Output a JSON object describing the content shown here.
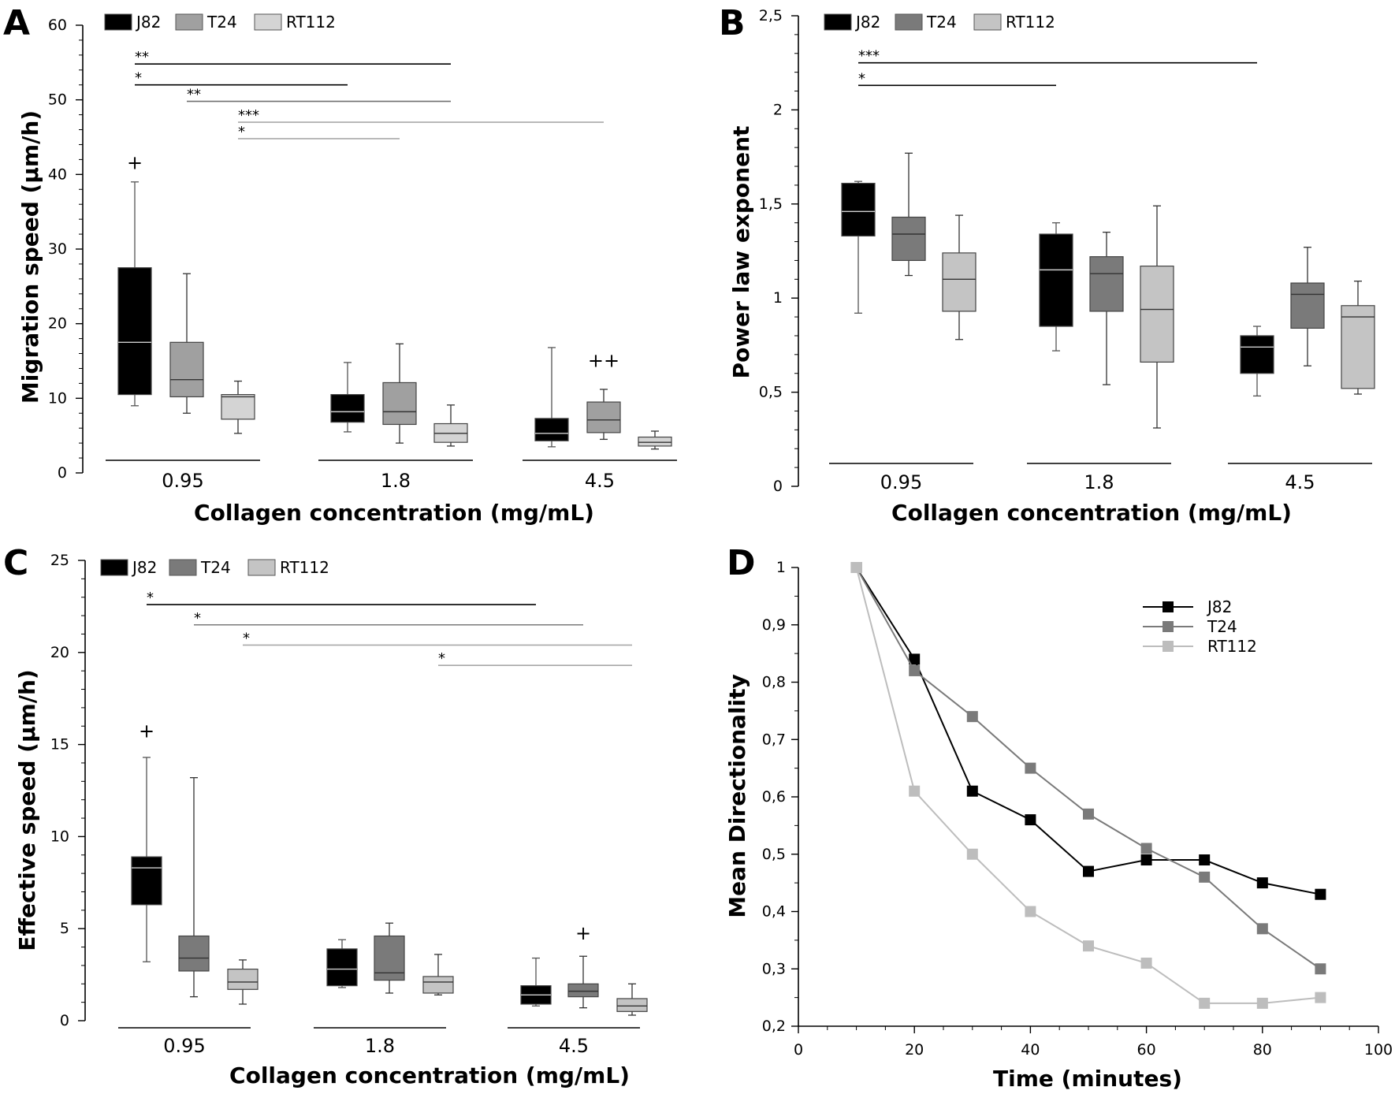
{
  "figure": {
    "colors": {
      "J82": "#000000",
      "T24": "#909090",
      "RT112": "#d0d0d0",
      "T24_dark": "#7a7a7a",
      "RT112_light": "#c4c4c4"
    }
  },
  "chart_data": [
    {
      "id": "A",
      "type": "box",
      "panel_label": "A",
      "title": "",
      "xlabel": "Collagen concentration (mg/mL)",
      "ylabel": "Migration speed (µm/h)",
      "ylim": [
        0,
        60
      ],
      "yticks": [
        0,
        10,
        20,
        30,
        40,
        50,
        60
      ],
      "ytick_labels": [
        "0",
        "10",
        "20",
        "30",
        "40",
        "50",
        "60"
      ],
      "categories": [
        "0.95",
        "1.8",
        "4.5"
      ],
      "legend": [
        "J82",
        "T24",
        "RT112"
      ],
      "series": [
        {
          "name": "J82",
          "color": "#000000",
          "boxes": [
            {
              "min": 9,
              "q1": 10.5,
              "median": 17.5,
              "q3": 27.5,
              "max": 39
            },
            {
              "min": 5.5,
              "q1": 6.8,
              "median": 8.2,
              "q3": 10.5,
              "max": 14.8
            },
            {
              "min": 3.5,
              "q1": 4.3,
              "median": 5.3,
              "q3": 7.3,
              "max": 16.8
            }
          ]
        },
        {
          "name": "T24",
          "color": "#a0a0a0",
          "boxes": [
            {
              "min": 8,
              "q1": 10.2,
              "median": 12.5,
              "q3": 17.5,
              "max": 26.7
            },
            {
              "min": 4,
              "q1": 6.5,
              "median": 8.2,
              "q3": 12.1,
              "max": 17.3
            },
            {
              "min": 4.5,
              "q1": 5.4,
              "median": 7.1,
              "q3": 9.5,
              "max": 11.2
            }
          ]
        },
        {
          "name": "RT112",
          "color": "#d4d4d4",
          "boxes": [
            {
              "min": 5.3,
              "q1": 7.2,
              "median": 10.2,
              "q3": 10.5,
              "max": 12.3
            },
            {
              "min": 3.6,
              "q1": 4.1,
              "median": 5.3,
              "q3": 6.6,
              "max": 9.1
            },
            {
              "min": 3.2,
              "q1": 3.6,
              "median": 4.1,
              "q3": 4.8,
              "max": 5.6
            }
          ]
        }
      ],
      "significance": [
        {
          "label": "**",
          "from": [
            0,
            0
          ],
          "to": [
            1,
            2
          ],
          "y": 54.8,
          "color": "#000000"
        },
        {
          "label": "*",
          "from": [
            0,
            0
          ],
          "to": [
            1,
            0
          ],
          "y": 52.0,
          "color": "#000000"
        },
        {
          "label": "**",
          "from": [
            0,
            1
          ],
          "to": [
            1,
            2
          ],
          "y": 49.8,
          "color": "#707070"
        },
        {
          "label": "***",
          "from": [
            0,
            2
          ],
          "to": [
            2,
            1
          ],
          "y": 47.0,
          "color": "#a8a8a8"
        },
        {
          "label": "*",
          "from": [
            0,
            2
          ],
          "to": [
            1,
            1
          ],
          "y": 44.8,
          "color": "#a8a8a8"
        }
      ],
      "outliers": [
        {
          "label": "+",
          "category": 0,
          "series": 0,
          "y": 40.7
        },
        {
          "label": "++",
          "category": 2,
          "series": 1,
          "y": 14.2
        }
      ]
    },
    {
      "id": "B",
      "type": "box",
      "panel_label": "B",
      "title": "",
      "xlabel": "Collagen concentration (mg/mL)",
      "ylabel": "Power law exponent",
      "ylim": [
        0,
        2.5
      ],
      "yticks": [
        0,
        0.5,
        1,
        1.5,
        2,
        2.5
      ],
      "ytick_labels": [
        "0",
        "0,5",
        "1",
        "1,5",
        "2",
        "2,5"
      ],
      "categories": [
        "0.95",
        "1.8",
        "4.5"
      ],
      "legend": [
        "J82",
        "T24",
        "RT112"
      ],
      "series": [
        {
          "name": "J82",
          "color": "#000000",
          "boxes": [
            {
              "min": 0.92,
              "q1": 1.33,
              "median": 1.46,
              "q3": 1.61,
              "max": 1.62
            },
            {
              "min": 0.72,
              "q1": 0.85,
              "median": 1.15,
              "q3": 1.34,
              "max": 1.4
            },
            {
              "min": 0.48,
              "q1": 0.6,
              "median": 0.74,
              "q3": 0.8,
              "max": 0.85
            }
          ]
        },
        {
          "name": "T24",
          "color": "#7a7a7a",
          "boxes": [
            {
              "min": 1.12,
              "q1": 1.2,
              "median": 1.34,
              "q3": 1.43,
              "max": 1.77
            },
            {
              "min": 0.54,
              "q1": 0.93,
              "median": 1.13,
              "q3": 1.22,
              "max": 1.35
            },
            {
              "min": 0.64,
              "q1": 0.84,
              "median": 1.02,
              "q3": 1.08,
              "max": 1.27
            }
          ]
        },
        {
          "name": "RT112",
          "color": "#c4c4c4",
          "boxes": [
            {
              "min": 0.78,
              "q1": 0.93,
              "median": 1.1,
              "q3": 1.24,
              "max": 1.44
            },
            {
              "min": 0.31,
              "q1": 0.66,
              "median": 0.94,
              "q3": 1.17,
              "max": 1.49
            },
            {
              "min": 0.49,
              "q1": 0.52,
              "median": 0.9,
              "q3": 0.96,
              "max": 1.09
            }
          ]
        }
      ],
      "significance": [
        {
          "label": "***",
          "from": [
            0,
            0
          ],
          "to": [
            2,
            0
          ],
          "y": 2.25,
          "color": "#000000"
        },
        {
          "label": "*",
          "from": [
            0,
            0
          ],
          "to": [
            1,
            0
          ],
          "y": 2.13,
          "color": "#000000"
        }
      ],
      "outliers": []
    },
    {
      "id": "C",
      "type": "box",
      "panel_label": "C",
      "title": "",
      "xlabel": "Collagen concentration (mg/mL)",
      "ylabel": "Effective speed (µm/h)",
      "ylim": [
        0,
        25
      ],
      "yticks": [
        0,
        5,
        10,
        15,
        20,
        25
      ],
      "ytick_labels": [
        "0",
        "5",
        "10",
        "15",
        "20",
        "25"
      ],
      "categories": [
        "0.95",
        "1.8",
        "4.5"
      ],
      "legend": [
        "J82",
        "T24",
        "RT112"
      ],
      "series": [
        {
          "name": "J82",
          "color": "#000000",
          "boxes": [
            {
              "min": 3.2,
              "q1": 6.3,
              "median": 8.3,
              "q3": 8.9,
              "max": 14.3
            },
            {
              "min": 1.8,
              "q1": 1.9,
              "median": 2.8,
              "q3": 3.9,
              "max": 4.4
            },
            {
              "min": 0.8,
              "q1": 0.9,
              "median": 1.4,
              "q3": 1.9,
              "max": 3.4
            }
          ]
        },
        {
          "name": "T24",
          "color": "#7a7a7a",
          "boxes": [
            {
              "min": 1.3,
              "q1": 2.7,
              "median": 3.4,
              "q3": 4.6,
              "max": 13.2
            },
            {
              "min": 1.5,
              "q1": 2.2,
              "median": 2.6,
              "q3": 4.6,
              "max": 5.3
            },
            {
              "min": 0.7,
              "q1": 1.3,
              "median": 1.6,
              "q3": 2.0,
              "max": 3.5
            }
          ]
        },
        {
          "name": "RT112",
          "color": "#c4c4c4",
          "boxes": [
            {
              "min": 0.9,
              "q1": 1.7,
              "median": 2.1,
              "q3": 2.8,
              "max": 3.3
            },
            {
              "min": 1.4,
              "q1": 1.5,
              "median": 2.1,
              "q3": 2.4,
              "max": 3.6
            },
            {
              "min": 0.3,
              "q1": 0.5,
              "median": 0.8,
              "q3": 1.2,
              "max": 2.0
            }
          ]
        }
      ],
      "significance": [
        {
          "label": "*",
          "from": [
            0,
            0
          ],
          "to": [
            2,
            0
          ],
          "y": 22.6,
          "color": "#000000"
        },
        {
          "label": "*",
          "from": [
            0,
            1
          ],
          "to": [
            2,
            1
          ],
          "y": 21.5,
          "color": "#7a7a7a"
        },
        {
          "label": "*",
          "from": [
            0,
            2
          ],
          "to": [
            2,
            2
          ],
          "y": 20.4,
          "color": "#a8a8a8"
        },
        {
          "label": "*",
          "from": [
            1,
            2
          ],
          "to": [
            2,
            2
          ],
          "y": 19.3,
          "color": "#a8a8a8"
        }
      ],
      "outliers": [
        {
          "label": "+",
          "category": 0,
          "series": 0,
          "y": 15.4
        },
        {
          "label": "+",
          "category": 2,
          "series": 1,
          "y": 4.4
        }
      ]
    },
    {
      "id": "D",
      "type": "line",
      "panel_label": "D",
      "title": "",
      "xlabel": "Time (minutes)",
      "ylabel": "Mean Directionality",
      "xlim": [
        0,
        100
      ],
      "ylim": [
        0.2,
        1.0
      ],
      "xticks": [
        0,
        20,
        40,
        60,
        80,
        100
      ],
      "xtick_labels": [
        "0",
        "20",
        "40",
        "60",
        "80",
        "100"
      ],
      "yticks": [
        0.2,
        0.3,
        0.4,
        0.5,
        0.6,
        0.7,
        0.8,
        0.9,
        1.0
      ],
      "ytick_labels": [
        "0,2",
        "0,3",
        "0,4",
        "0,5",
        "0,6",
        "0,7",
        "0,8",
        "0,9",
        "1"
      ],
      "x": [
        10,
        20,
        30,
        40,
        50,
        60,
        70,
        80,
        90
      ],
      "legend": [
        "J82",
        "T24",
        "RT112"
      ],
      "series": [
        {
          "name": "J82",
          "color": "#000000",
          "values": [
            1.0,
            0.84,
            0.61,
            0.56,
            0.47,
            0.49,
            0.49,
            0.45,
            0.43
          ]
        },
        {
          "name": "T24",
          "color": "#7a7a7a",
          "values": [
            1.0,
            0.82,
            0.74,
            0.65,
            0.57,
            0.51,
            0.46,
            0.37,
            0.3
          ]
        },
        {
          "name": "RT112",
          "color": "#bdbdbd",
          "values": [
            1.0,
            0.61,
            0.5,
            0.4,
            0.34,
            0.31,
            0.24,
            0.24,
            0.25
          ]
        }
      ]
    }
  ]
}
